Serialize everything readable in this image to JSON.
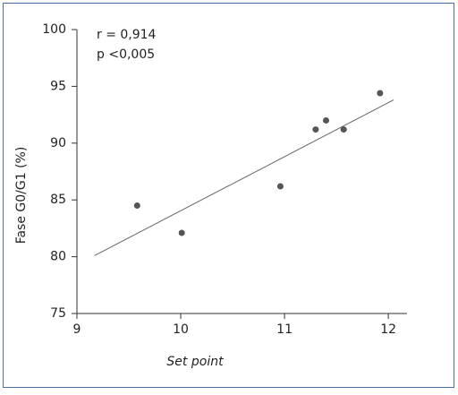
{
  "chart_data": {
    "type": "scatter",
    "x_label": "Set point",
    "y_label": "Fase G0/G1 (%)",
    "annotations": [
      "r = 0,914",
      "p <0,005"
    ],
    "series": [
      {
        "color": "#555555",
        "x": [
          9.58,
          10.01,
          10.96,
          11.3,
          11.4,
          11.57,
          11.92
        ],
        "values": [
          84.5,
          82.1,
          86.2,
          91.2,
          92.0,
          91.2,
          94.4
        ]
      }
    ],
    "trend_line": {
      "color": "#666666",
      "x": [
        9.17,
        12.05
      ],
      "values": [
        80.1,
        93.8
      ]
    },
    "xlim": [
      9,
      12.18
    ],
    "xticks": [
      9,
      10,
      11,
      12
    ],
    "ylim": [
      75,
      100
    ],
    "yticks": [
      75,
      80,
      85,
      90,
      95,
      100
    ]
  }
}
